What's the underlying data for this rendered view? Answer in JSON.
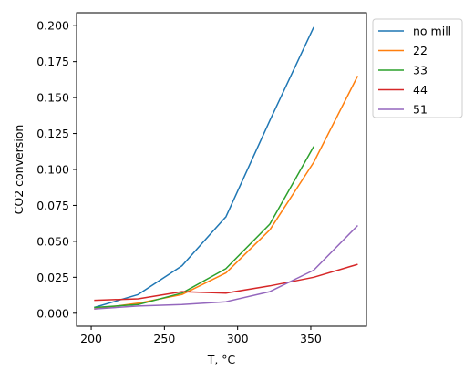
{
  "chart_data": {
    "type": "line",
    "xlabel": "T, °C",
    "ylabel": "CO2 conversion",
    "xlim": [
      190,
      388
    ],
    "ylim": [
      -0.009,
      0.209
    ],
    "x_ticks": [
      200,
      250,
      300,
      350
    ],
    "y_ticks": [
      0.0,
      0.025,
      0.05,
      0.075,
      0.1,
      0.125,
      0.15,
      0.175,
      0.2
    ],
    "y_tick_labels": [
      "0.000",
      "0.025",
      "0.050",
      "0.075",
      "0.100",
      "0.125",
      "0.150",
      "0.175",
      "0.200"
    ],
    "grid": false,
    "legend_position": "outside-top-right",
    "series": [
      {
        "name": "no mill",
        "color": "#1f77b4",
        "x": [
          202,
          232,
          262,
          291,
          292,
          322,
          352
        ],
        "y": [
          0.004,
          0.013,
          0.033,
          0.066,
          0.067,
          0.134,
          0.199
        ]
      },
      {
        "name": "22",
        "color": "#ff7f0e",
        "x": [
          202,
          232,
          262,
          292,
          322,
          352,
          382
        ],
        "y": [
          0.003,
          0.007,
          0.013,
          0.028,
          0.058,
          0.105,
          0.165
        ]
      },
      {
        "name": "33",
        "color": "#2ca02c",
        "x": [
          202,
          232,
          262,
          292,
          322,
          352
        ],
        "y": [
          0.004,
          0.006,
          0.014,
          0.031,
          0.062,
          0.116
        ]
      },
      {
        "name": "44",
        "color": "#d62728",
        "x": [
          202,
          232,
          262,
          292,
          322,
          352,
          382
        ],
        "y": [
          0.009,
          0.01,
          0.015,
          0.014,
          0.019,
          0.025,
          0.034
        ]
      },
      {
        "name": "51",
        "color": "#9467bd",
        "x": [
          202,
          232,
          262,
          292,
          322,
          352,
          382
        ],
        "y": [
          0.003,
          0.005,
          0.006,
          0.008,
          0.015,
          0.03,
          0.061
        ]
      }
    ]
  }
}
